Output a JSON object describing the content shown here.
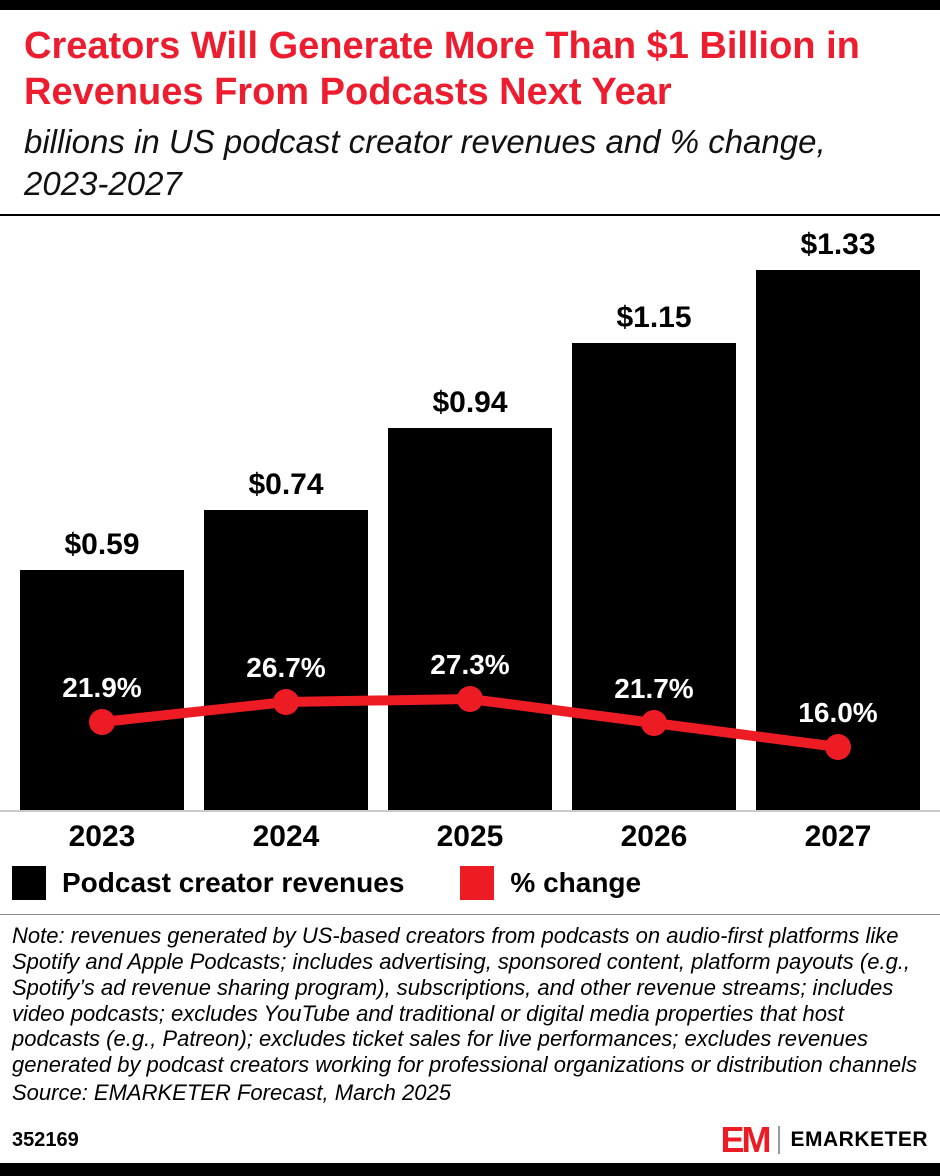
{
  "header": {
    "title": "Creators Will Generate More Than $1 Billion in Revenues From Podcasts Next Year",
    "subtitle": "billions in US podcast creator revenues and % change, 2023-2027"
  },
  "chart_data": {
    "type": "bar",
    "categories": [
      "2023",
      "2024",
      "2025",
      "2026",
      "2027"
    ],
    "series": [
      {
        "name": "Podcast creator revenues",
        "type": "bar",
        "values": [
          0.59,
          0.74,
          0.94,
          1.15,
          1.33
        ],
        "labels": [
          "$0.59",
          "$0.74",
          "$0.94",
          "$1.15",
          "$1.33"
        ],
        "unit": "billions USD",
        "color": "#000000"
      },
      {
        "name": "% change",
        "type": "line",
        "values": [
          21.9,
          26.7,
          27.3,
          21.7,
          16.0
        ],
        "labels": [
          "21.9%",
          "26.7%",
          "27.3%",
          "21.7%",
          "16.0%"
        ],
        "color": "#ed1c24"
      }
    ],
    "title": "Creators Will Generate More Than $1 Billion in Revenues From Podcasts Next Year",
    "xlabel": "",
    "ylabel": "billions in US podcast creator revenues",
    "grid": false,
    "legend_position": "bottom"
  },
  "legend": [
    {
      "label": "Podcast creator revenues",
      "color": "#000000"
    },
    {
      "label": "% change",
      "color": "#ed1c24"
    }
  ],
  "note": "Note: revenues generated by US-based creators from podcasts on audio-first platforms like Spotify and Apple Podcasts; includes advertising, sponsored content, platform payouts (e.g., Spotify’s ad revenue sharing program), subscriptions, and other revenue streams; includes video podcasts; excludes YouTube and traditional or digital media properties that host podcasts (e.g., Patreon); excludes ticket sales for live performances; excludes revenues generated by podcast creators working for professional organizations or distribution channels",
  "source": "Source: EMARKETER Forecast, March 2025",
  "footer": {
    "chart_id": "352169",
    "brand": "EMARKETER",
    "brand_mark": "EM"
  },
  "colors": {
    "title_red": "#ed1c2e",
    "line_red": "#ed1c24",
    "bar_black": "#000000"
  }
}
